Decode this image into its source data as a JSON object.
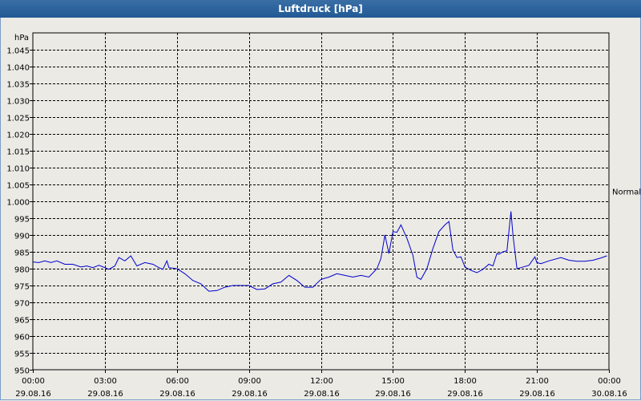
{
  "window": {
    "title": "Luftdruck [hPa]"
  },
  "chart_data": {
    "type": "line",
    "title": "Luftdruck [hPa]",
    "ylabel": "hPa",
    "ylim": [
      950,
      1050
    ],
    "xlim": [
      "29.08.16 00:00",
      "30.08.16 00:00"
    ],
    "yticks": [
      "950",
      "955",
      "960",
      "965",
      "970",
      "975",
      "980",
      "985",
      "990",
      "995",
      "1.000",
      "1.005",
      "1.010",
      "1.015",
      "1.020",
      "1.025",
      "1.030",
      "1.035",
      "1.040",
      "1.045"
    ],
    "ytick_values": [
      950,
      955,
      960,
      965,
      970,
      975,
      980,
      985,
      990,
      995,
      1000,
      1005,
      1010,
      1015,
      1020,
      1025,
      1030,
      1035,
      1040,
      1045
    ],
    "xticks": [
      {
        "time": "00:00",
        "date": "29.08.16"
      },
      {
        "time": "03:00",
        "date": "29.08.16"
      },
      {
        "time": "06:00",
        "date": "29.08.16"
      },
      {
        "time": "09:00",
        "date": "29.08.16"
      },
      {
        "time": "12:00",
        "date": "29.08.16"
      },
      {
        "time": "15:00",
        "date": "29.08.16"
      },
      {
        "time": "18:00",
        "date": "29.08.16"
      },
      {
        "time": "21:00",
        "date": "29.08.16"
      },
      {
        "time": "00:00",
        "date": "30.08.16"
      }
    ],
    "grid": true,
    "reference_line": {
      "label": "Normal",
      "value": 1003
    },
    "series": [
      {
        "color": "#0000cc",
        "x": [
          "29.08.16 00:00",
          "29.08.16 00:15",
          "29.08.16 00:30",
          "29.08.16 00:45",
          "29.08.16 01:00",
          "29.08.16 01:20",
          "29.08.16 01:40",
          "29.08.16 02:00",
          "29.08.16 02:15",
          "29.08.16 02:30",
          "29.08.16 02:45",
          "29.08.16 03:00",
          "29.08.16 03:10",
          "29.08.16 03:25",
          "29.08.16 03:35",
          "29.08.16 03:50",
          "29.08.16 04:05",
          "29.08.16 04:20",
          "29.08.16 04:40",
          "29.08.16 05:00",
          "29.08.16 05:15",
          "29.08.16 05:25",
          "29.08.16 05:35",
          "29.08.16 05:40",
          "29.08.16 06:00",
          "29.08.16 06:20",
          "29.08.16 06:40",
          "29.08.16 07:00",
          "29.08.16 07:20",
          "29.08.16 07:40",
          "29.08.16 08:00",
          "29.08.16 08:20",
          "29.08.16 08:40",
          "29.08.16 09:00",
          "29.08.16 09:20",
          "29.08.16 09:40",
          "29.08.16 10:00",
          "29.08.16 10:20",
          "29.08.16 10:40",
          "29.08.16 11:00",
          "29.08.16 11:20",
          "29.08.16 11:40",
          "29.08.16 12:00",
          "29.08.16 12:20",
          "29.08.16 12:40",
          "29.08.16 13:00",
          "29.08.16 13:20",
          "29.08.16 13:40",
          "29.08.16 14:00",
          "29.08.16 14:20",
          "29.08.16 14:30",
          "29.08.16 14:40",
          "29.08.16 14:50",
          "29.08.16 15:00",
          "29.08.16 15:10",
          "29.08.16 15:20",
          "29.08.16 15:35",
          "29.08.16 15:50",
          "29.08.16 16:00",
          "29.08.16 16:10",
          "29.08.16 16:25",
          "29.08.16 16:40",
          "29.08.16 16:55",
          "29.08.16 17:10",
          "29.08.16 17:20",
          "29.08.16 17:30",
          "29.08.16 17:40",
          "29.08.16 17:50",
          "29.08.16 18:00",
          "29.08.16 18:15",
          "29.08.16 18:30",
          "29.08.16 18:45",
          "29.08.16 19:00",
          "29.08.16 19:10",
          "29.08.16 19:20",
          "29.08.16 19:25",
          "29.08.16 19:35",
          "29.08.16 19:45",
          "29.08.16 19:55",
          "29.08.16 20:00",
          "29.08.16 20:10",
          "29.08.16 20:20",
          "29.08.16 20:40",
          "29.08.16 20:55",
          "29.08.16 21:00",
          "29.08.16 21:10",
          "29.08.16 21:30",
          "29.08.16 22:00",
          "29.08.16 22:20",
          "29.08.16 22:40",
          "29.08.16 23:00",
          "29.08.16 23:20",
          "29.08.16 23:40",
          "29.08.16 23:55"
        ],
        "y": [
          982,
          981.8,
          982.3,
          981.8,
          982.3,
          981.3,
          981.3,
          980.5,
          980.8,
          980.3,
          981,
          980.3,
          979.8,
          980.8,
          983.3,
          982.3,
          983.8,
          980.8,
          981.8,
          981.3,
          980.3,
          979.8,
          982.3,
          980.3,
          980,
          978.5,
          976.5,
          975.5,
          973.3,
          973.5,
          974.5,
          975,
          975,
          975,
          973.8,
          974,
          975.5,
          976,
          978,
          976.5,
          974.5,
          974.5,
          976.8,
          977.5,
          978.5,
          978,
          977.5,
          978,
          977.5,
          980,
          983,
          990,
          984.5,
          991,
          990.8,
          993,
          989,
          984,
          977.5,
          976.8,
          980,
          986,
          991,
          993,
          994,
          985.5,
          983.3,
          983.5,
          980.5,
          979.5,
          978.8,
          979.8,
          981.3,
          980.8,
          984.5,
          984.3,
          985,
          985.3,
          997,
          990,
          980,
          980.3,
          981,
          983.5,
          981.8,
          981.5,
          982.3,
          983.3,
          982.5,
          982.2,
          982.2,
          982.5,
          983.2,
          983.8
        ]
      }
    ]
  }
}
